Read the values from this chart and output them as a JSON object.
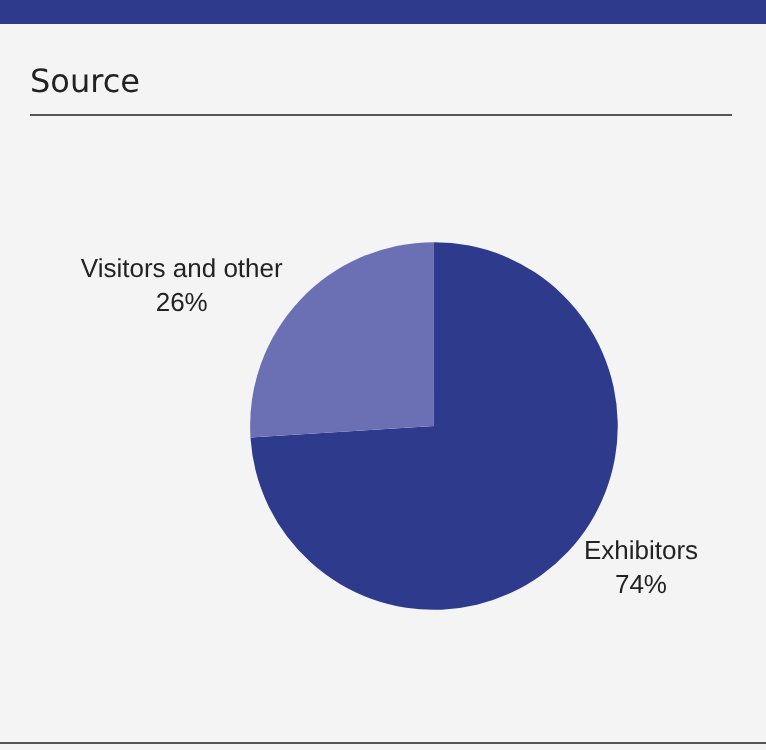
{
  "chart_data": {
    "type": "pie",
    "title": "Source",
    "categories": [
      "Exhibitors",
      "Visitors and other"
    ],
    "values": [
      74,
      26
    ],
    "value_labels": [
      "74%",
      "26%"
    ],
    "colors": [
      "#2e3a8c",
      "#6b6fb4"
    ],
    "legend": false
  }
}
